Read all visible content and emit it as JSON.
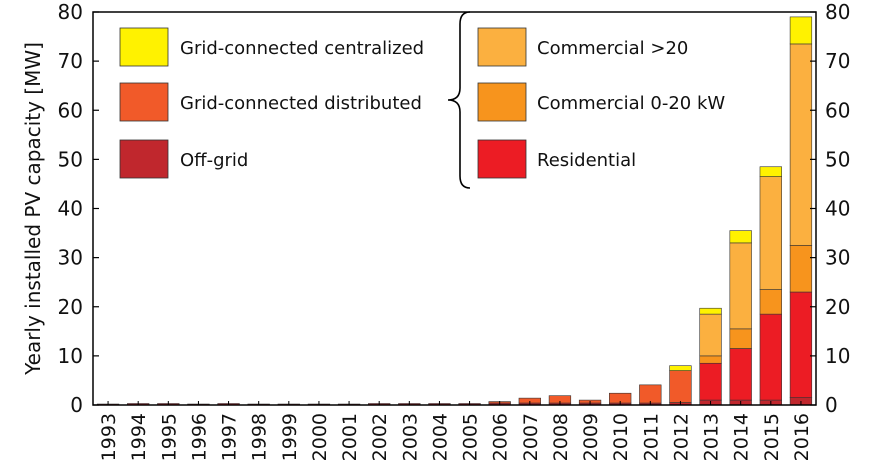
{
  "chart_data": {
    "type": "bar",
    "stacked": true,
    "title": "",
    "xlabel": "",
    "ylabel": "Yearly installed PV capacity [MW]",
    "ylim": [
      0,
      80
    ],
    "yticks": [
      0,
      10,
      20,
      30,
      40,
      50,
      60,
      70,
      80
    ],
    "secondary_y_axis": true,
    "grid": false,
    "categories": [
      "1993",
      "1994",
      "1995",
      "1996",
      "1997",
      "1998",
      "1999",
      "2000",
      "2001",
      "2002",
      "2003",
      "2004",
      "2005",
      "2006",
      "2007",
      "2008",
      "2009",
      "2010",
      "2011",
      "2012",
      "2013",
      "2014",
      "2015",
      "2016"
    ],
    "series": [
      {
        "key": "offgrid",
        "name": "Off-grid",
        "color": "#c0272d",
        "values": [
          0.2,
          0.3,
          0.3,
          0.2,
          0.3,
          0.2,
          0.2,
          0.2,
          0.2,
          0.3,
          0.3,
          0.3,
          0.3,
          0.4,
          0.4,
          0.4,
          0.4,
          0.4,
          0.4,
          0.5,
          1.0,
          1.0,
          1.0,
          1.5
        ]
      },
      {
        "key": "residential",
        "name": "Residential",
        "color": "#ec1c24",
        "values": [
          0,
          0,
          0,
          0,
          0,
          0,
          0,
          0,
          0,
          0,
          0,
          0,
          0,
          0,
          0,
          0,
          0,
          0,
          0,
          0,
          7.5,
          10.5,
          17.5,
          21.5
        ]
      },
      {
        "key": "commercial_0_20",
        "name": "Commercial 0-20 kW",
        "color": "#f7941d",
        "values": [
          0,
          0,
          0,
          0,
          0,
          0,
          0,
          0,
          0,
          0,
          0,
          0,
          0,
          0,
          0,
          0,
          0,
          0,
          0,
          0,
          1.5,
          4.0,
          5.0,
          9.5
        ]
      },
      {
        "key": "commercial_gt20",
        "name": "Commercial >20",
        "color": "#fbb040",
        "values": [
          0,
          0,
          0,
          0,
          0,
          0,
          0,
          0,
          0,
          0,
          0,
          0,
          0,
          0,
          0,
          0,
          0,
          0,
          0,
          0,
          8.5,
          17.5,
          23.0,
          41.0
        ]
      },
      {
        "key": "distributed",
        "name": "Grid-connected distributed",
        "color": "#f15a29",
        "values": [
          0,
          0,
          0,
          0,
          0,
          0,
          0,
          0,
          0,
          0,
          0,
          0,
          0,
          0.3,
          1.0,
          1.5,
          0.6,
          2.0,
          3.7,
          6.5,
          0,
          0,
          0,
          0
        ]
      },
      {
        "key": "centralized",
        "name": "Grid-connected centralized",
        "color": "#fff200",
        "values": [
          0,
          0,
          0,
          0,
          0,
          0,
          0,
          0,
          0,
          0,
          0,
          0,
          0,
          0,
          0,
          0,
          0,
          0,
          0,
          1.0,
          1.2,
          2.5,
          2.0,
          5.5
        ]
      }
    ],
    "legend_left": [
      "centralized",
      "distributed",
      "offgrid"
    ],
    "legend_right": [
      "commercial_gt20",
      "commercial_0_20",
      "residential"
    ]
  }
}
